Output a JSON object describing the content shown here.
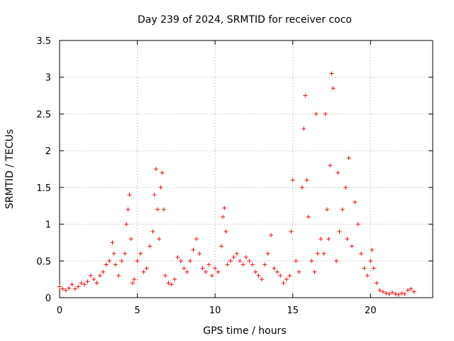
{
  "chart_data": {
    "type": "scatter",
    "title": "Day 239 of 2024, SRMTID for receiver coco",
    "xlabel": "GPS time / hours",
    "ylabel": "SRMTID / TECUs",
    "xlim": [
      0,
      24.0
    ],
    "ylim": [
      0,
      3.5
    ],
    "x_ticks": [
      0,
      5,
      10,
      15,
      20
    ],
    "x_tick_labels": [
      "0",
      "5",
      "10",
      "15",
      "20"
    ],
    "y_ticks": [
      0,
      0.5,
      1,
      1.5,
      2,
      2.5,
      3,
      3.5
    ],
    "y_tick_labels": [
      "0",
      "0.5",
      "1",
      "1.5",
      "2",
      "2.5",
      "3",
      "3.5"
    ],
    "grid": true,
    "marker": "+",
    "marker_color": "#ee1010",
    "series": [
      {
        "name": "SRMTID",
        "x": [
          0.0,
          0.2,
          0.4,
          0.6,
          0.8,
          1.0,
          1.2,
          1.4,
          1.6,
          1.8,
          2.0,
          2.2,
          2.4,
          2.6,
          2.8,
          3.0,
          3.2,
          3.4,
          3.5,
          3.6,
          3.8,
          4.0,
          4.2,
          4.3,
          4.4,
          4.5,
          4.6,
          4.7,
          4.8,
          5.0,
          5.2,
          5.4,
          5.6,
          5.8,
          6.0,
          6.1,
          6.2,
          6.3,
          6.4,
          6.5,
          6.6,
          6.7,
          6.8,
          7.0,
          7.2,
          7.4,
          7.6,
          7.8,
          8.0,
          8.2,
          8.4,
          8.6,
          8.8,
          9.0,
          9.2,
          9.4,
          9.6,
          9.8,
          10.0,
          10.2,
          10.4,
          10.5,
          10.6,
          10.7,
          10.8,
          11.0,
          11.2,
          11.4,
          11.6,
          11.8,
          12.0,
          12.2,
          12.4,
          12.6,
          12.8,
          13.0,
          13.2,
          13.4,
          13.6,
          13.8,
          14.0,
          14.2,
          14.4,
          14.6,
          14.8,
          14.9,
          15.0,
          15.2,
          15.4,
          15.6,
          15.7,
          15.8,
          15.9,
          16.0,
          16.2,
          16.4,
          16.5,
          16.6,
          16.8,
          17.0,
          17.1,
          17.2,
          17.3,
          17.4,
          17.5,
          17.6,
          17.8,
          17.9,
          18.0,
          18.2,
          18.4,
          18.5,
          18.6,
          18.8,
          19.0,
          19.2,
          19.4,
          19.6,
          19.8,
          20.0,
          20.1,
          20.2,
          20.4,
          20.6,
          20.8,
          21.0,
          21.2,
          21.4,
          21.6,
          21.8,
          22.0,
          22.2,
          22.4,
          22.6,
          22.8
        ],
        "values": [
          0.15,
          0.12,
          0.1,
          0.13,
          0.18,
          0.12,
          0.15,
          0.2,
          0.18,
          0.22,
          0.3,
          0.25,
          0.2,
          0.3,
          0.35,
          0.45,
          0.5,
          0.75,
          0.6,
          0.45,
          0.3,
          0.5,
          0.6,
          1.0,
          1.2,
          1.4,
          0.8,
          0.2,
          0.25,
          0.5,
          0.6,
          0.35,
          0.4,
          0.7,
          0.9,
          1.4,
          1.75,
          1.2,
          0.8,
          1.5,
          1.7,
          1.2,
          0.3,
          0.2,
          0.18,
          0.25,
          0.55,
          0.5,
          0.4,
          0.35,
          0.5,
          0.65,
          0.8,
          0.6,
          0.4,
          0.35,
          0.45,
          0.3,
          0.4,
          0.35,
          0.7,
          1.1,
          1.22,
          0.9,
          0.45,
          0.5,
          0.55,
          0.6,
          0.5,
          0.45,
          0.55,
          0.5,
          0.45,
          0.35,
          0.3,
          0.25,
          0.45,
          0.6,
          0.85,
          0.4,
          0.35,
          0.3,
          0.2,
          0.25,
          0.3,
          0.9,
          1.6,
          0.5,
          0.35,
          1.5,
          2.3,
          2.75,
          1.6,
          1.1,
          0.5,
          0.35,
          2.5,
          0.6,
          0.8,
          0.6,
          2.5,
          1.2,
          0.8,
          1.8,
          3.05,
          2.85,
          0.5,
          1.7,
          0.9,
          1.2,
          1.5,
          0.8,
          1.9,
          0.7,
          1.3,
          1.0,
          0.6,
          0.4,
          0.3,
          0.5,
          0.65,
          0.4,
          0.2,
          0.1,
          0.08,
          0.06,
          0.05,
          0.07,
          0.05,
          0.04,
          0.06,
          0.05,
          0.1,
          0.12,
          0.08
        ]
      }
    ]
  }
}
